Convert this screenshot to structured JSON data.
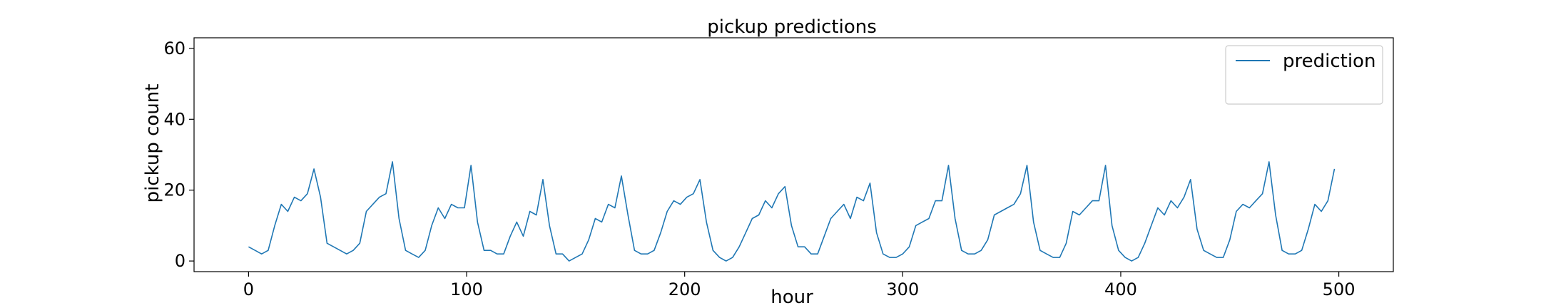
{
  "chart_data": {
    "type": "line",
    "title": "pickup predictions",
    "xlabel": "hour",
    "ylabel": "pickup count",
    "xlim": [
      -25,
      525
    ],
    "ylim": [
      -3,
      63
    ],
    "xticks": [
      0,
      100,
      200,
      300,
      400,
      500
    ],
    "yticks": [
      0,
      20,
      40,
      60
    ],
    "grid": false,
    "legend_position": "top-right",
    "series": [
      {
        "name": "prediction",
        "color": "#1f77b4",
        "x": [
          0,
          3,
          6,
          9,
          12,
          15,
          18,
          21,
          24,
          27,
          30,
          33,
          36,
          39,
          42,
          45,
          48,
          51,
          54,
          57,
          60,
          63,
          66,
          69,
          72,
          75,
          78,
          81,
          84,
          87,
          90,
          93,
          96,
          99,
          102,
          105,
          108,
          111,
          114,
          117,
          120,
          123,
          126,
          129,
          132,
          135,
          138,
          141,
          144,
          147,
          150,
          153,
          156,
          159,
          162,
          165,
          168,
          171,
          174,
          177,
          180,
          183,
          186,
          189,
          192,
          195,
          198,
          201,
          204,
          207,
          210,
          213,
          216,
          219,
          222,
          225,
          228,
          231,
          234,
          237,
          240,
          243,
          246,
          249,
          252,
          255,
          258,
          261,
          264,
          267,
          270,
          273,
          276,
          279,
          282,
          285,
          288,
          291,
          294,
          297,
          300,
          303,
          306,
          309,
          312,
          315,
          318,
          321,
          324,
          327,
          330,
          333,
          336,
          339,
          342,
          345,
          348,
          351,
          354,
          357,
          360,
          363,
          366,
          369,
          372,
          375,
          378,
          381,
          384,
          387,
          390,
          393,
          396,
          399,
          402,
          405,
          408,
          411,
          414,
          417,
          420,
          423,
          426,
          429,
          432,
          435,
          438,
          441,
          444,
          447,
          450,
          453,
          456,
          459,
          462,
          465,
          468,
          471,
          474,
          477,
          480,
          483,
          486,
          489,
          492,
          495,
          498
        ],
        "values": [
          4,
          3,
          2,
          3,
          10,
          16,
          14,
          18,
          17,
          19,
          26,
          18,
          5,
          4,
          3,
          2,
          3,
          5,
          14,
          16,
          18,
          19,
          28,
          12,
          3,
          2,
          1,
          3,
          10,
          15,
          12,
          16,
          15,
          15,
          27,
          11,
          3,
          3,
          2,
          2,
          7,
          11,
          7,
          14,
          13,
          23,
          10,
          2,
          2,
          0,
          1,
          2,
          6,
          12,
          11,
          16,
          15,
          24,
          13,
          3,
          2,
          2,
          3,
          8,
          14,
          17,
          16,
          18,
          19,
          23,
          11,
          3,
          1,
          0,
          1,
          4,
          8,
          12,
          13,
          17,
          15,
          19,
          21,
          10,
          4,
          4,
          2,
          2,
          7,
          12,
          14,
          16,
          12,
          18,
          17,
          22,
          8,
          2,
          1,
          1,
          2,
          4,
          10,
          11,
          12,
          17,
          17,
          27,
          12,
          3,
          2,
          2,
          3,
          6,
          13,
          14,
          15,
          16,
          19,
          27,
          11,
          3,
          2,
          1,
          1,
          5,
          14,
          13,
          15,
          17,
          17,
          27,
          10,
          3,
          1,
          0,
          1,
          5,
          10,
          15,
          13,
          17,
          15,
          18,
          23,
          9,
          3,
          2,
          1,
          1,
          6,
          14,
          16,
          15,
          17,
          19,
          28,
          13,
          3,
          2,
          2,
          3,
          9,
          16,
          14,
          17,
          26
        ],
        "sample_note": "not shown"
      }
    ]
  }
}
